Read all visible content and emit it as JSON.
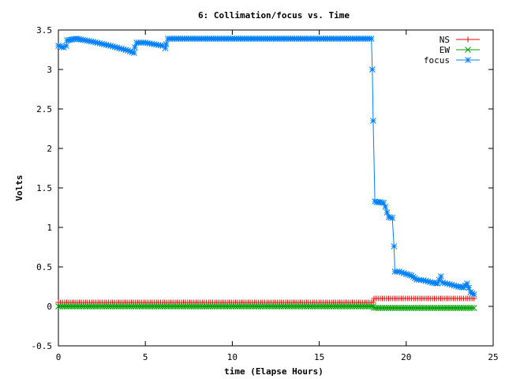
{
  "chart_data": {
    "type": "line",
    "title": "6: Collimation/focus vs. Time",
    "xlabel": "time (Elapse Hours)",
    "ylabel": "Volts",
    "xlim": [
      0,
      25
    ],
    "ylim": [
      -0.5,
      3.5
    ],
    "x_ticks": [
      "0",
      "5",
      "10",
      "15",
      "20",
      "25"
    ],
    "y_ticks": [
      "-0.5",
      "0",
      "0.5",
      "1",
      "1.5",
      "2",
      "2.5",
      "3",
      "3.5"
    ],
    "grid": false,
    "legend_position": "top-right",
    "series": [
      {
        "name": "NS",
        "color": "#ff0000",
        "marker": "plus",
        "x": [
          0.0,
          18.1,
          18.15,
          23.9
        ],
        "y": [
          0.05,
          0.05,
          0.1,
          0.1
        ]
      },
      {
        "name": "EW",
        "color": "#00a000",
        "marker": "cross",
        "x": [
          0.0,
          18.1,
          18.15,
          23.9
        ],
        "y": [
          0.0,
          0.0,
          -0.02,
          -0.02
        ]
      },
      {
        "name": "focus",
        "color": "#0080ff",
        "marker": "star",
        "x": [
          0.0,
          0.3,
          0.45,
          0.5,
          0.8,
          1.0,
          1.3,
          2.0,
          3.0,
          4.0,
          4.35,
          4.4,
          4.5,
          5.0,
          6.0,
          6.15,
          6.2,
          6.3,
          10.0,
          15.0,
          18.0,
          18.05,
          18.1,
          18.2,
          18.3,
          18.5,
          18.7,
          18.8,
          18.9,
          19.0,
          19.2,
          19.3,
          19.35,
          19.6,
          20.0,
          20.3,
          20.6,
          21.0,
          21.5,
          21.8,
          22.0,
          22.1,
          22.5,
          23.0,
          23.3,
          23.5,
          23.7,
          23.9
        ],
        "y": [
          3.3,
          3.28,
          3.3,
          3.37,
          3.38,
          3.39,
          3.38,
          3.35,
          3.3,
          3.24,
          3.21,
          3.28,
          3.34,
          3.34,
          3.3,
          3.27,
          3.32,
          3.39,
          3.39,
          3.39,
          3.39,
          3.0,
          2.35,
          1.33,
          1.32,
          1.32,
          1.31,
          1.26,
          1.19,
          1.13,
          1.12,
          0.76,
          0.44,
          0.44,
          0.41,
          0.39,
          0.34,
          0.33,
          0.3,
          0.29,
          0.38,
          0.3,
          0.28,
          0.25,
          0.24,
          0.29,
          0.18,
          0.15
        ]
      }
    ]
  }
}
